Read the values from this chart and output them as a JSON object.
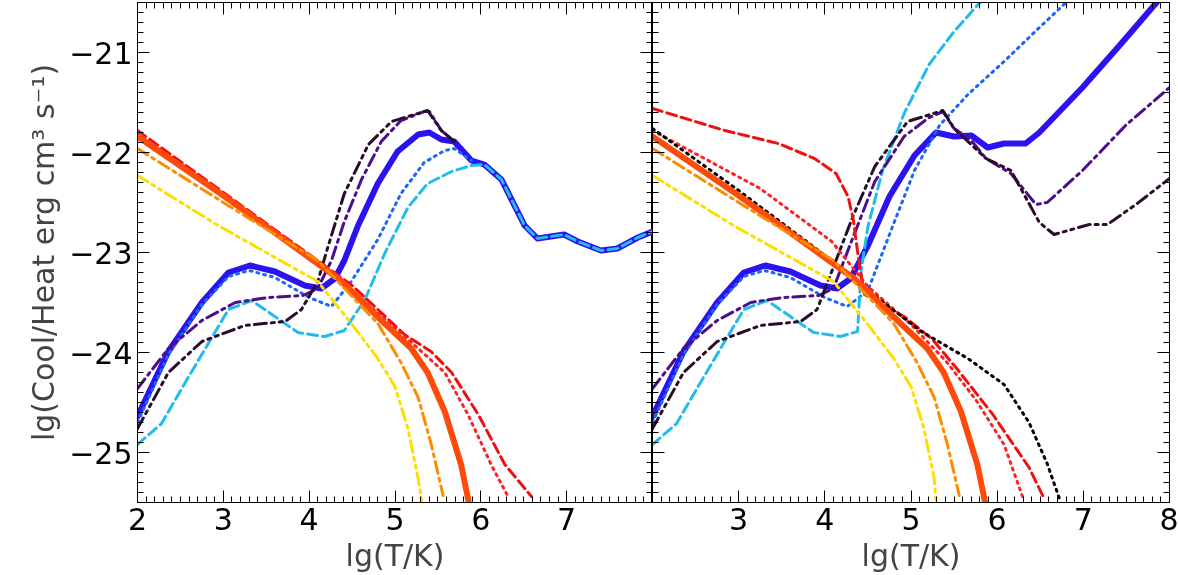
{
  "chart_data": [
    {
      "type": "line",
      "xlabel": "lg(T/K)",
      "ylabel": "lg(Cool/Heat erg cm³ s⁻¹)",
      "xlim": [
        2,
        8
      ],
      "ylim": [
        -25.5,
        -20.5
      ],
      "xticks": [
        2,
        3,
        4,
        5,
        6,
        7,
        {
          "value": 8,
          "label": null
        }
      ],
      "yticks": [
        -25,
        -24,
        -23,
        -22,
        -21
      ],
      "grid": false,
      "series": [
        {
          "color": "#2b12f0",
          "line_style": "solid",
          "x": [
            2,
            2.36,
            2.75,
            3.06,
            3.31,
            3.6,
            3.95,
            4.14,
            4.3,
            4.41,
            4.57,
            4.8,
            5.03,
            5.27,
            5.4,
            5.54,
            5.69,
            5.89,
            6.04,
            6.24,
            6.51,
            6.66,
            6.97,
            7.13,
            7.4,
            7.59,
            7.83,
            8
          ],
          "values": [
            -24.64,
            -23.99,
            -23.5,
            -23.2,
            -23.13,
            -23.19,
            -23.33,
            -23.36,
            -23.26,
            -23.08,
            -22.73,
            -22.31,
            -21.99,
            -21.82,
            -21.8,
            -21.87,
            -21.89,
            -22.08,
            -22.12,
            -22.27,
            -22.73,
            -22.86,
            -22.82,
            -22.89,
            -22.98,
            -22.96,
            -22.85,
            -22.79
          ]
        },
        {
          "color": "#1a66ff",
          "line_style": "dotted",
          "x": [
            2,
            2.36,
            2.75,
            3.06,
            3.3,
            3.6,
            4.0,
            4.26,
            4.49,
            4.8,
            5.07,
            5.34,
            5.58,
            5.69,
            5.89
          ],
          "values": [
            -24.7,
            -24.02,
            -23.52,
            -23.24,
            -23.18,
            -23.25,
            -23.45,
            -23.54,
            -23.29,
            -22.87,
            -22.41,
            -22.1,
            -21.98,
            -21.96,
            -22.08
          ]
        },
        {
          "color": "#22bbee",
          "line_style": "dashed",
          "x": [
            2,
            2.28,
            2.55,
            2.79,
            3.06,
            3.33,
            3.6,
            3.87,
            4.18,
            4.41,
            4.65,
            4.88,
            5.15,
            5.38,
            5.66,
            5.89,
            6.04,
            6.24,
            6.51,
            6.66,
            6.97,
            7.13,
            7.4,
            7.59,
            7.83,
            8
          ],
          "values": [
            -24.92,
            -24.71,
            -24.31,
            -23.96,
            -23.57,
            -23.48,
            -23.64,
            -23.8,
            -23.84,
            -23.78,
            -23.47,
            -23.01,
            -22.55,
            -22.31,
            -22.19,
            -22.13,
            -22.12,
            -22.27,
            -22.73,
            -22.86,
            -22.82,
            -22.89,
            -22.98,
            -22.96,
            -22.85,
            -22.79
          ]
        },
        {
          "color": "#4b0f8c",
          "line_style": "dashdot",
          "x": [
            2,
            2.36,
            2.75,
            3.14,
            3.52,
            3.93,
            4.1,
            4.26,
            4.41,
            4.61,
            4.84,
            5.07,
            5.34,
            5.4,
            5.54,
            5.69
          ],
          "values": [
            -24.36,
            -23.96,
            -23.68,
            -23.5,
            -23.45,
            -23.43,
            -23.36,
            -23.08,
            -22.69,
            -22.27,
            -21.89,
            -21.68,
            -21.59,
            -21.59,
            -21.78,
            -21.89
          ]
        },
        {
          "color": "#2a0d2a",
          "line_style": "dashdotdot",
          "x": [
            2,
            2.36,
            2.75,
            3.25,
            3.72,
            3.91,
            4.1,
            4.22,
            4.41,
            4.69,
            4.96,
            5.38,
            5.54,
            5.69
          ],
          "values": [
            -24.76,
            -24.2,
            -23.89,
            -23.73,
            -23.69,
            -23.57,
            -23.29,
            -22.94,
            -22.41,
            -21.92,
            -21.69,
            -21.58,
            -21.78,
            -21.89
          ]
        },
        {
          "color": "#ee1111",
          "line_style": "dashed",
          "x": [
            2,
            3,
            4,
            4.5,
            5.11,
            5.42,
            5.66,
            5.97,
            6.28,
            6.59
          ],
          "values": [
            -21.78,
            -22.4,
            -23.02,
            -23.33,
            -23.82,
            -23.99,
            -24.2,
            -24.62,
            -25.12,
            -25.44
          ]
        },
        {
          "color": "#ff2222",
          "line_style": "dotted",
          "x": [
            2,
            3,
            4,
            4.5,
            5.27,
            5.58,
            5.85,
            6.12,
            6.31
          ],
          "values": [
            -21.8,
            -22.42,
            -23.04,
            -23.38,
            -23.96,
            -24.2,
            -24.62,
            -25.12,
            -25.43
          ]
        },
        {
          "color": "#ff4a0a",
          "line_style": "solid",
          "x": [
            2,
            3,
            4,
            4.34,
            4.88,
            5.19,
            5.38,
            5.58,
            5.77,
            5.86
          ],
          "values": [
            -21.84,
            -22.43,
            -23.05,
            -23.26,
            -23.71,
            -23.96,
            -24.2,
            -24.59,
            -25.12,
            -25.5
          ]
        },
        {
          "color": "#ff8c00",
          "line_style": "dashdot",
          "x": [
            2,
            3,
            4.1,
            4.49,
            4.8,
            5.07,
            5.27,
            5.42,
            5.56
          ],
          "values": [
            -21.96,
            -22.5,
            -23.08,
            -23.43,
            -23.71,
            -24.1,
            -24.45,
            -24.91,
            -25.43
          ]
        },
        {
          "color": "#ffdd00",
          "line_style": "dashdotdot",
          "x": [
            2,
            2.94,
            3.52,
            4.1,
            4.49,
            4.8,
            5.0,
            5.15,
            5.27,
            5.31
          ],
          "values": [
            -22.23,
            -22.73,
            -23.01,
            -23.29,
            -23.71,
            -24.06,
            -24.34,
            -24.76,
            -25.26,
            -25.48
          ]
        }
      ]
    },
    {
      "type": "line",
      "xlabel": "lg(T/K)",
      "xlim": [
        2,
        8
      ],
      "ylim": [
        -25.5,
        -20.5
      ],
      "xticks": [
        {
          "value": 2,
          "label": null
        },
        3,
        4,
        5,
        6,
        7,
        8
      ],
      "yticks": [
        -25,
        -24,
        -23,
        -22,
        -21
      ],
      "tick_labels": "x",
      "grid": false,
      "series": [
        {
          "color": "#2b12f0",
          "line_style": "solid",
          "x": [
            2,
            2.36,
            2.75,
            3.06,
            3.31,
            3.6,
            3.95,
            4.14,
            4.3,
            4.5,
            4.75,
            5.04,
            5.29,
            5.5,
            5.7,
            5.89,
            6.08,
            6.33,
            6.49,
            6.99,
            7.41,
            7.85
          ],
          "values": [
            -24.64,
            -23.99,
            -23.5,
            -23.2,
            -23.13,
            -23.19,
            -23.33,
            -23.36,
            -23.26,
            -22.93,
            -22.44,
            -22.03,
            -21.8,
            -21.84,
            -21.83,
            -21.95,
            -21.91,
            -21.91,
            -21.8,
            -21.35,
            -20.94,
            -20.5
          ]
        },
        {
          "color": "#1a66ff",
          "line_style": "dotted",
          "x": [
            2,
            2.36,
            2.75,
            3.06,
            3.3,
            3.6,
            4.0,
            4.26,
            4.5,
            4.75,
            5.04,
            5.33,
            5.66,
            6.08,
            6.49,
            6.8
          ],
          "values": [
            -24.7,
            -24.02,
            -23.52,
            -23.24,
            -23.18,
            -23.25,
            -23.45,
            -23.54,
            -23.38,
            -22.82,
            -22.18,
            -21.73,
            -21.42,
            -21.09,
            -20.75,
            -20.5
          ]
        },
        {
          "color": "#22bbee",
          "line_style": "dashed",
          "x": [
            2,
            2.28,
            2.55,
            2.79,
            3.06,
            3.33,
            3.6,
            3.87,
            4.18,
            4.38,
            4.42,
            4.5,
            4.67,
            4.92,
            5.21,
            5.5,
            5.8
          ],
          "values": [
            -24.92,
            -24.71,
            -24.31,
            -23.96,
            -23.57,
            -23.48,
            -23.64,
            -23.8,
            -23.84,
            -23.79,
            -23.19,
            -22.74,
            -22.18,
            -21.61,
            -21.12,
            -20.79,
            -20.5
          ]
        },
        {
          "color": "#4b0f8c",
          "line_style": "dashdot",
          "x": [
            2,
            2.36,
            2.75,
            3.14,
            3.52,
            3.93,
            4.1,
            4.29,
            4.58,
            4.92,
            5.21,
            5.37,
            5.5,
            5.7,
            5.87,
            6.16,
            6.45,
            6.58,
            6.99,
            7.49,
            8
          ],
          "values": [
            -24.36,
            -23.96,
            -23.68,
            -23.5,
            -23.45,
            -23.43,
            -23.36,
            -22.93,
            -22.29,
            -21.84,
            -21.65,
            -21.59,
            -21.76,
            -21.88,
            -22.06,
            -22.21,
            -22.52,
            -22.5,
            -22.18,
            -21.73,
            -21.35
          ]
        },
        {
          "color": "#2a0d2a",
          "line_style": "dashdotdot",
          "x": [
            2,
            2.36,
            2.75,
            3.25,
            3.72,
            3.91,
            4.08,
            4.33,
            4.58,
            4.96,
            5.37,
            5.5,
            5.87,
            6.16,
            6.49,
            6.66,
            7.07,
            7.28,
            7.61,
            8
          ],
          "values": [
            -24.76,
            -24.2,
            -23.89,
            -23.73,
            -23.69,
            -23.57,
            -23.19,
            -22.63,
            -22.14,
            -21.69,
            -21.58,
            -21.76,
            -22.06,
            -22.18,
            -22.7,
            -22.82,
            -22.72,
            -22.72,
            -22.52,
            -22.26
          ]
        },
        {
          "color": "#ee1111",
          "line_style": "dashed",
          "x": [
            2,
            2.84,
            3.46,
            3.88,
            4.13,
            4.27,
            4.33,
            4.4,
            4.46,
            4.92,
            5.25,
            5.54,
            5.95,
            6.37,
            6.54
          ],
          "values": [
            -21.56,
            -21.78,
            -21.91,
            -22.06,
            -22.21,
            -22.44,
            -22.67,
            -23.12,
            -23.42,
            -23.64,
            -23.87,
            -24.17,
            -24.62,
            -25.15,
            -25.45
          ]
        },
        {
          "color": "#ff2222",
          "line_style": "dotted",
          "x": [
            2,
            3.25,
            4.08,
            4.5,
            5.0,
            5.41,
            5.75,
            6.08,
            6.31
          ],
          "values": [
            -21.78,
            -22.36,
            -22.89,
            -23.34,
            -23.72,
            -24.09,
            -24.47,
            -24.92,
            -25.48
          ]
        },
        {
          "color": "#000000",
          "line_style": "dotted",
          "x": [
            2,
            3,
            4.08,
            4.5,
            5.12,
            5.66,
            6.08,
            6.37,
            6.58,
            6.73
          ],
          "values": [
            -21.76,
            -22.38,
            -23.08,
            -23.38,
            -23.79,
            -24.06,
            -24.32,
            -24.7,
            -25.11,
            -25.48
          ]
        },
        {
          "color": "#ff4a0a",
          "line_style": "solid",
          "x": [
            2,
            3,
            4,
            4.34,
            4.88,
            5.19,
            5.38,
            5.58,
            5.77,
            5.86
          ],
          "values": [
            -21.84,
            -22.43,
            -23.05,
            -23.26,
            -23.71,
            -23.96,
            -24.2,
            -24.59,
            -25.12,
            -25.5
          ]
        },
        {
          "color": "#ff8c00",
          "line_style": "dashdot",
          "x": [
            2,
            3,
            4.1,
            4.49,
            4.8,
            5.07,
            5.27,
            5.42,
            5.56
          ],
          "values": [
            -21.96,
            -22.5,
            -23.08,
            -23.43,
            -23.71,
            -24.1,
            -24.45,
            -24.91,
            -25.43
          ]
        },
        {
          "color": "#ffdd00",
          "line_style": "dashdotdot",
          "x": [
            2,
            2.94,
            3.52,
            4.1,
            4.49,
            4.8,
            5.0,
            5.15,
            5.27,
            5.29
          ],
          "values": [
            -22.23,
            -22.73,
            -23.01,
            -23.29,
            -23.71,
            -24.06,
            -24.34,
            -24.76,
            -25.26,
            -25.48
          ]
        }
      ]
    }
  ]
}
